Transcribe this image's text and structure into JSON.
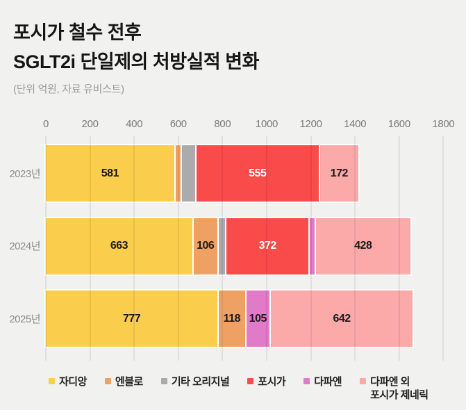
{
  "header": {
    "title_line1": "포시가 철수 전후",
    "title_line2": "SGLT2i 단일제의 처방실적 변화",
    "subtitle": "(단위 억원, 자료 유비스트)"
  },
  "colors": {
    "background": "#f1f1f0",
    "gridline": "rgba(0,0,0,0.075)",
    "jardiance_yellow": "#facd4d",
    "enblo_orange": "#efa164",
    "etc_gray": "#ababab",
    "forxiga_red": "#fa4b4b",
    "dapaen_magenta": "#e17ac8",
    "generic_pink": "#fba9a9"
  },
  "chart_data": {
    "type": "bar",
    "orientation": "horizontal-stacked",
    "categories": [
      "2023년",
      "2024년",
      "2025년"
    ],
    "series": [
      {
        "name": "자디앙",
        "color": "#facd4d",
        "label_color": "#1a1a1a",
        "values": [
          581,
          663,
          777
        ]
      },
      {
        "name": "엔블로",
        "color": "#efa164",
        "label_color": "#1a1a1a",
        "values": [
          24,
          106,
          118
        ]
      },
      {
        "name": "기타 오리지널",
        "color": "#ababab",
        "label_color": "#1a1a1a",
        "values": [
          57,
          30,
          0
        ]
      },
      {
        "name": "포시가",
        "color": "#fa4b4b",
        "label_color": "#ffffff",
        "values": [
          555,
          372,
          0
        ]
      },
      {
        "name": "다파엔",
        "color": "#e17ac8",
        "label_color": "#1a1a1a",
        "values": [
          0,
          20,
          105
        ]
      },
      {
        "name": "다파엔 외 포시가 제네릭",
        "color": "#fba9a9",
        "label_color": "#1a1a1a",
        "values": [
          172,
          428,
          642
        ]
      }
    ],
    "label_min": 100,
    "xlim": [
      0,
      1800
    ],
    "ticks": [
      0,
      200,
      400,
      600,
      800,
      1000,
      1200,
      1400,
      1600,
      1800
    ],
    "grid": true,
    "legend_position": "bottom",
    "legend_labels": [
      "자디앙",
      "엔블로",
      "기타 오리지널",
      "포시가",
      "다파엔",
      "다파엔 외\n포시가 제네릭"
    ]
  }
}
